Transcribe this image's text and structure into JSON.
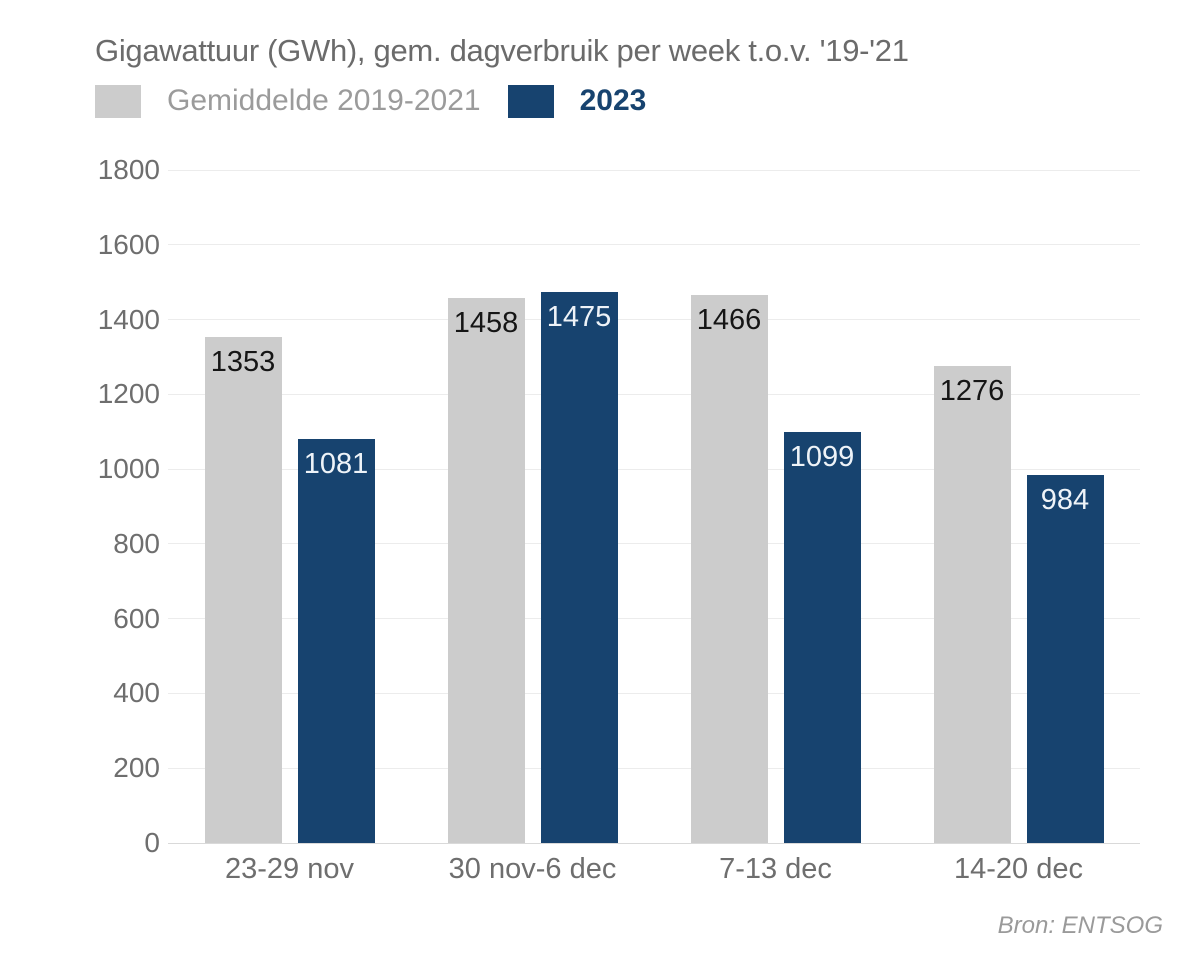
{
  "title": "Gigawattuur (GWh), gem. dagverbruik per week t.o.v. '19-'21",
  "legend": {
    "items": [
      {
        "label": "Gemiddelde 2019-2021",
        "swatch_color": "#cccccc",
        "text_color": "#9b9b9b"
      },
      {
        "label": "2023",
        "swatch_color": "#17436f",
        "text_color": "#17436f"
      }
    ]
  },
  "source": "Bron: ENTSOG",
  "colors": {
    "background": "#ffffff",
    "title_text": "#6b6b6b",
    "gridline": "#ececec",
    "baseline": "#d9d9d9",
    "axis_text": "#6e6e6e",
    "bar_gray": "#cccccc",
    "bar_blue": "#17436f",
    "value_on_gray": "#151515",
    "value_on_blue": "#eef3f8"
  },
  "chart_data": {
    "type": "bar",
    "title": "Gigawattuur (GWh), gem. dagverbruik per week t.o.v. '19-'21",
    "categories": [
      "23-29 nov",
      "30 nov-6 dec",
      "7-13 dec",
      "14-20 dec"
    ],
    "series": [
      {
        "name": "Gemiddelde 2019-2021",
        "color": "#cccccc",
        "label_color": "#151515",
        "values": [
          1353,
          1458,
          1466,
          1276
        ]
      },
      {
        "name": "2023",
        "color": "#17436f",
        "label_color": "#eef3f8",
        "values": [
          1081,
          1475,
          1099,
          984
        ]
      }
    ],
    "xlabel": "",
    "ylabel": "",
    "ylim": [
      0,
      1800
    ],
    "yticks": [
      0,
      200,
      400,
      600,
      800,
      1000,
      1200,
      1400,
      1600,
      1800
    ],
    "grid": true,
    "legend_position": "top-left",
    "value_labels": "inside-top",
    "source": "Bron: ENTSOG"
  }
}
